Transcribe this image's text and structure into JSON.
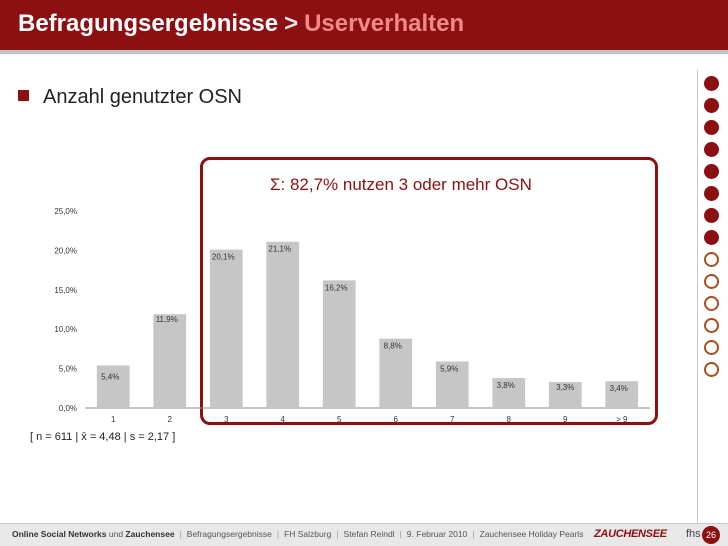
{
  "header": {
    "title": "Befragungsergebnisse",
    "separator": ">",
    "subtitle": "Userverhalten"
  },
  "bullet": "Anzahl genutzter OSN",
  "annotation": "Σ: 82,7% nutzen 3 oder mehr OSN",
  "stats_line": "[ n = 611  |  x̄ = 4,48  |  s = 2,17 ]",
  "chart_data": {
    "type": "bar",
    "categories": [
      "1",
      "2",
      "3",
      "4",
      "5",
      "6",
      "7",
      "8",
      "9",
      "> 9"
    ],
    "values": [
      5.4,
      11.9,
      20.1,
      21.1,
      16.2,
      8.8,
      5.9,
      3.8,
      3.3,
      3.4
    ],
    "value_labels": [
      "5,4%",
      "11,9%",
      "20,1%",
      "21,1%",
      "16,2%",
      "8,8%",
      "5,9%",
      "3,8%",
      "3,3%",
      "3,4%"
    ],
    "ytick_values": [
      0,
      5,
      10,
      15,
      20,
      25
    ],
    "ytick_labels": [
      "0,0%",
      "5,0%",
      "10,0%",
      "15,0%",
      "20,0%",
      "25,0%"
    ],
    "ylim": [
      0,
      25
    ],
    "bar_color": "#c6c6c6",
    "grid": false,
    "legend": "none"
  },
  "side_dots": [
    true,
    true,
    true,
    true,
    true,
    true,
    true,
    true,
    false,
    false,
    false,
    false,
    false,
    false
  ],
  "footer": {
    "items": [
      "Online Social Networks",
      "und",
      "Zauchensee",
      "Befragungsergebnisse",
      "FH Salzburg",
      "Stefan Reindl",
      "9. Februar 2010",
      "Zauchensee Holiday Pearls"
    ],
    "logo": "ZAUCHENSEE",
    "fhs": "fhs",
    "page_number": "26"
  },
  "colors": {
    "accent": "#8c0f12",
    "subtitle": "#f08a86",
    "bar": "#c6c6c6"
  }
}
